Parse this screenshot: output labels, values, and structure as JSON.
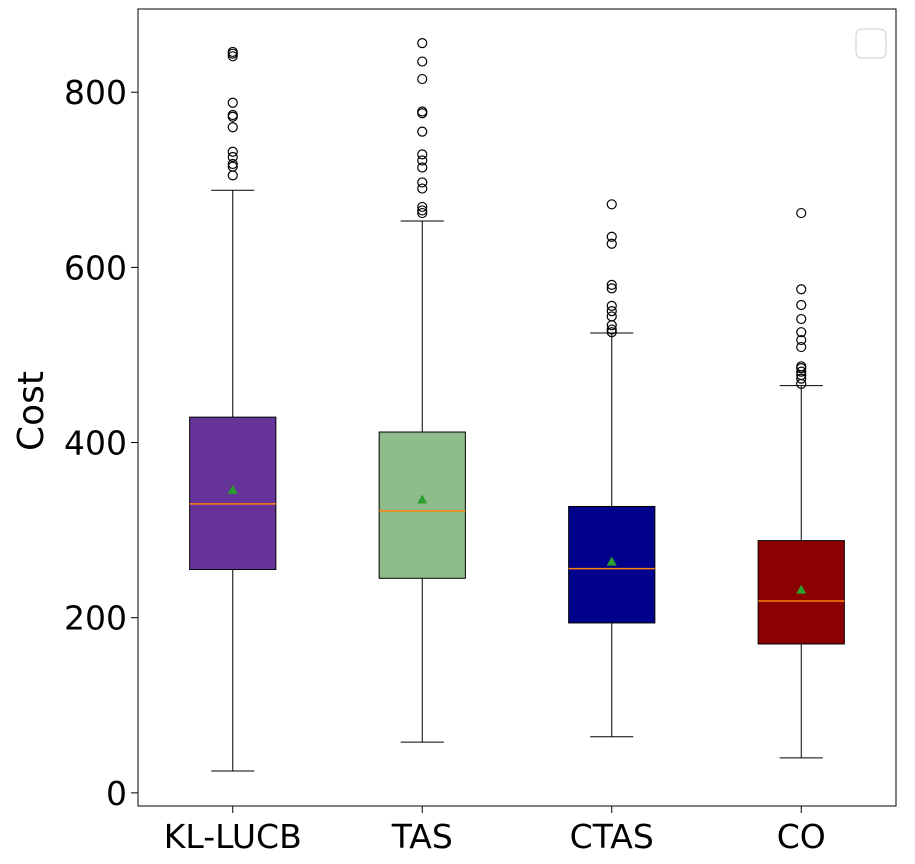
{
  "chart_data": {
    "type": "boxplot",
    "title": "",
    "xlabel": "",
    "ylabel": "Cost",
    "ylim": [
      -15,
      895
    ],
    "yticks": [
      0,
      200,
      400,
      600,
      800
    ],
    "categories": [
      "KL-LUCB",
      "TAS",
      "CTAS",
      "CO"
    ],
    "legend": {
      "placement": "top-right",
      "entries": []
    },
    "grid": false,
    "series": [
      {
        "name": "KL-LUCB",
        "color": "#663399",
        "whisker_low": 25,
        "q1": 255,
        "median": 330,
        "q3": 429,
        "whisker_high": 688,
        "mean": 346,
        "outliers": [
          705,
          715,
          718,
          726,
          732,
          760,
          772,
          774,
          788,
          841,
          844,
          846
        ]
      },
      {
        "name": "TAS",
        "color": "#8fbc8b",
        "whisker_low": 58,
        "q1": 245,
        "median": 322,
        "q3": 412,
        "whisker_high": 653,
        "mean": 335,
        "outliers": [
          662,
          665,
          669,
          690,
          697,
          714,
          722,
          729,
          755,
          776,
          778,
          815,
          835,
          856
        ]
      },
      {
        "name": "CTAS",
        "color": "#00008b",
        "whisker_low": 64,
        "q1": 194,
        "median": 256,
        "q3": 327,
        "whisker_high": 525,
        "mean": 264,
        "outliers": [
          526,
          529,
          534,
          544,
          550,
          556,
          576,
          580,
          627,
          635,
          672
        ]
      },
      {
        "name": "CO",
        "color": "#8b0000",
        "whisker_low": 40,
        "q1": 170,
        "median": 219,
        "q3": 288,
        "whisker_high": 465,
        "mean": 232,
        "outliers": [
          467,
          473,
          477,
          481,
          485,
          487,
          509,
          517,
          526,
          541,
          557,
          575,
          662
        ]
      }
    ],
    "median_color": "#ff7f0e",
    "mean_marker_color": "#2ca02c"
  }
}
